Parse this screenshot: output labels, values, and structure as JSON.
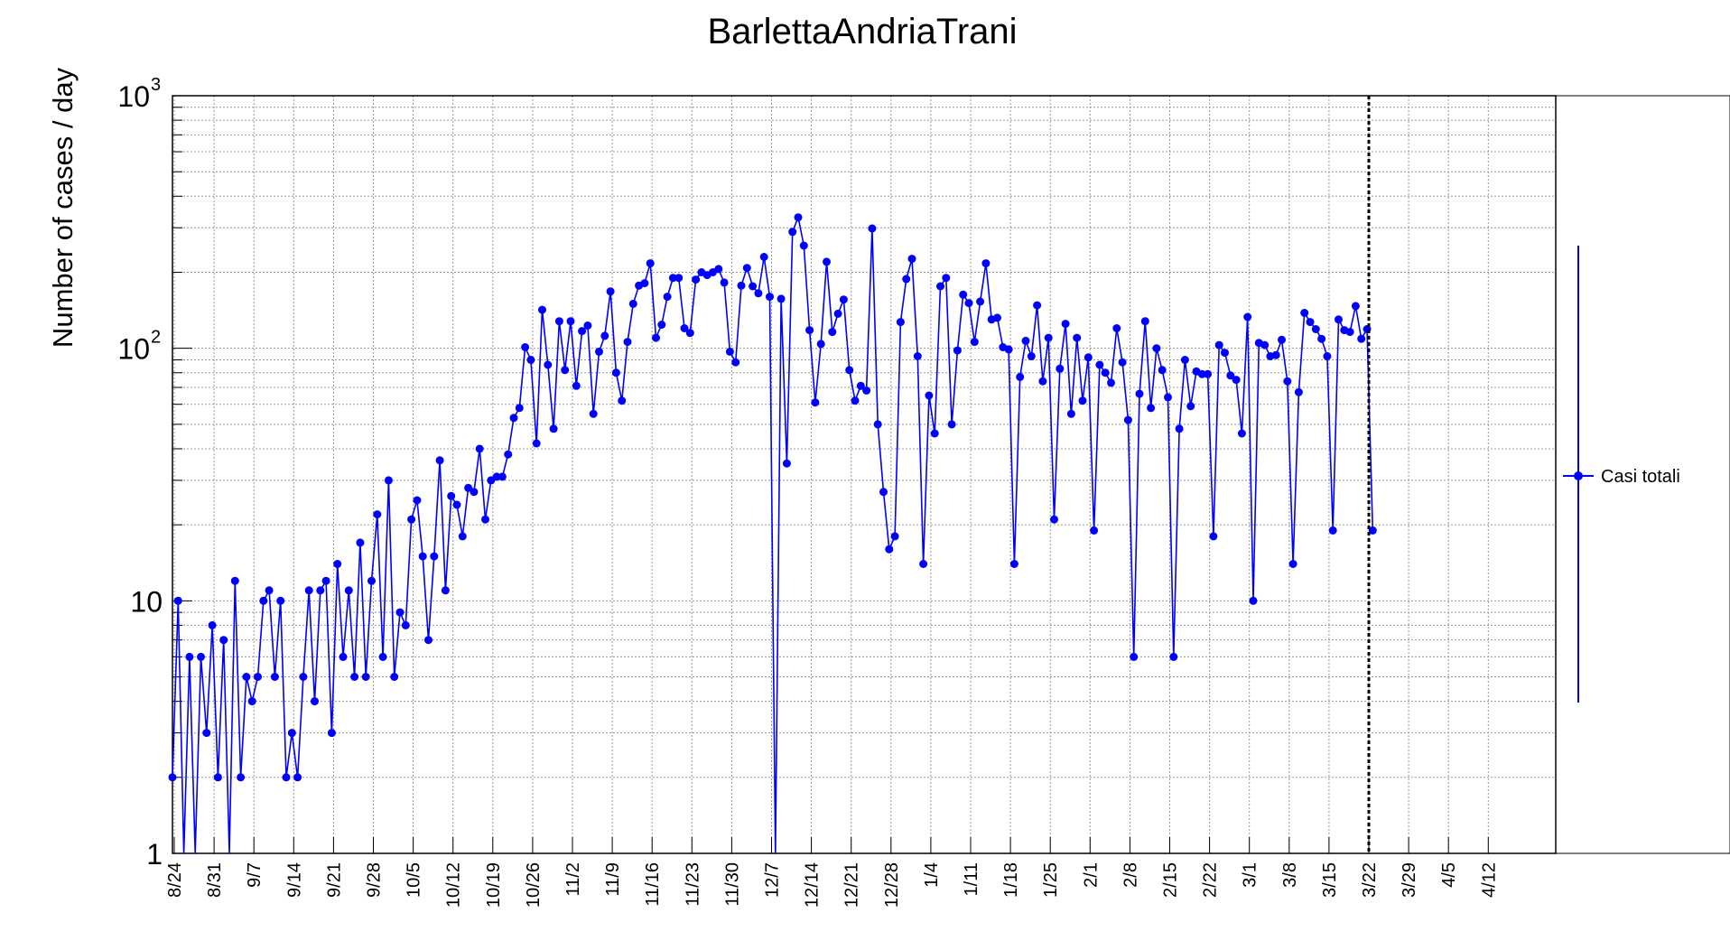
{
  "chart_data": {
    "type": "line",
    "title": "BarlettaAndriaTrani",
    "ylabel": "Number of cases / day",
    "xlabel": "",
    "y_scale": "log",
    "ylim": [
      1,
      1000
    ],
    "y_tick_labels": [
      "1",
      "10",
      "10",
      "10"
    ],
    "y_tick_exponents": [
      "",
      "",
      "2",
      "3"
    ],
    "x_start_date": "2020-08-24",
    "x_tick_labels": [
      "8/24",
      "8/31",
      "9/7",
      "9/14",
      "9/21",
      "9/28",
      "10/5",
      "10/12",
      "10/19",
      "10/26",
      "11/2",
      "11/9",
      "11/16",
      "11/23",
      "11/30",
      "12/7",
      "12/14",
      "12/21",
      "12/28",
      "1/4",
      "1/11",
      "1/18",
      "1/25",
      "2/1",
      "2/8",
      "2/15",
      "2/22",
      "3/1",
      "3/8",
      "3/15",
      "3/22",
      "3/29",
      "4/5",
      "4/12"
    ],
    "grid": true,
    "marker_line_date": "3/22",
    "legend_position": "right",
    "series": [
      {
        "name": "Casi totali",
        "color": "#0000ff",
        "values": [
          2,
          10,
          0,
          6,
          0,
          6,
          3,
          8,
          2,
          7,
          0,
          12,
          2,
          5,
          4,
          5,
          10,
          11,
          5,
          10,
          2,
          3,
          2,
          5,
          11,
          4,
          11,
          12,
          3,
          14,
          6,
          11,
          5,
          17,
          5,
          12,
          22,
          6,
          30,
          5,
          9,
          8,
          21,
          25,
          15,
          7,
          15,
          36,
          11,
          26,
          24,
          18,
          28,
          27,
          40,
          21,
          30,
          31,
          31,
          38,
          53,
          58,
          101,
          90,
          42,
          142,
          86,
          48,
          128,
          82,
          128,
          71,
          117,
          123,
          55,
          97,
          112,
          168,
          80,
          62,
          106,
          150,
          177,
          181,
          217,
          110,
          124,
          160,
          190,
          190,
          120,
          115,
          187,
          200,
          195,
          200,
          206,
          182,
          97,
          88,
          177,
          208,
          176,
          165,
          230,
          160,
          0,
          157,
          35,
          289,
          330,
          255,
          118,
          61,
          104,
          220,
          116,
          137,
          156,
          82,
          62,
          71,
          68,
          298,
          50,
          27,
          16,
          18,
          127,
          188,
          226,
          93,
          14,
          65,
          46,
          176,
          190,
          50,
          98,
          163,
          151,
          106,
          153,
          217,
          130,
          132,
          101,
          99,
          14,
          77,
          107,
          93,
          148,
          74,
          110,
          21,
          83,
          125,
          55,
          110,
          62,
          92,
          19,
          86,
          80,
          73,
          120,
          88,
          52,
          6,
          66,
          128,
          58,
          100,
          82,
          64,
          6,
          48,
          90,
          59,
          81,
          79,
          79,
          18,
          103,
          96,
          78,
          75,
          46,
          133,
          10,
          105,
          103,
          93,
          94,
          108,
          74,
          14,
          67,
          138,
          127,
          119,
          109,
          93,
          19,
          130,
          118,
          116,
          147,
          109,
          119,
          19
        ]
      }
    ]
  }
}
